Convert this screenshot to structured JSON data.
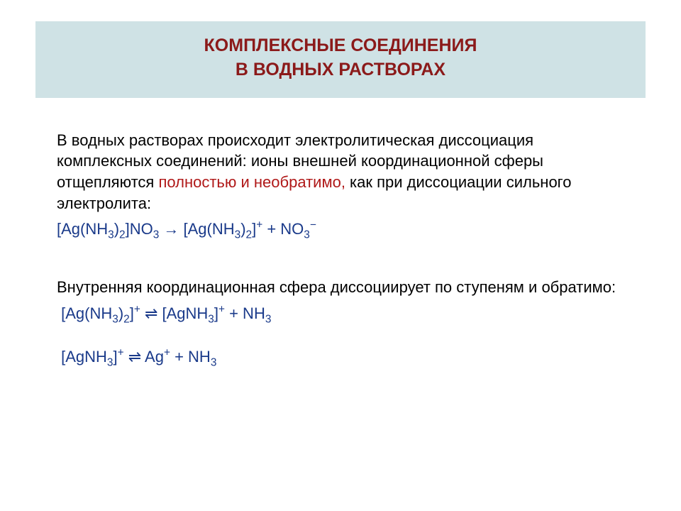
{
  "colors": {
    "title_bg": "#cfe2e5",
    "title_text": "#8b1a1a",
    "body_text": "#000000",
    "highlight_text": "#b01818",
    "formula_text": "#1a3a8a"
  },
  "typography": {
    "title_fontsize": 25,
    "body_fontsize": 22,
    "formula_fontsize": 22
  },
  "title": {
    "line1": "КОМПЛЕКСНЫЕ СОЕДИНЕНИЯ",
    "line2": "В ВОДНЫХ РАСТВОРАХ"
  },
  "para1": {
    "t1": "В водных растворах происходит электролитическая диссоциация комплексных соединений: ионы внешней координационной сферы отщепляются ",
    "hl": "полностью и необратимо,",
    "t2": " как при диссоциации сильного электролита:"
  },
  "formula1_html": "[Ag(NH<span class='sub'>3</span>)<span class='sub'>2</span>]NO<span class='sub'>3</span> &#8594; [Ag(NH<span class='sub'>3</span>)<span class='sub'>2</span>]<span class='sup'>+</span> + NO<span class='sub'>3</span><span class='sup'>&#8722;</span>",
  "para2": "Внутренняя координационная сфера диссоциирует по ступеням и обратимо:",
  "formula2_html": "&nbsp;[Ag(NH<span class='sub'>3</span>)<span class='sub'>2</span>]<span class='sup'>+</span> &#8652; [AgNH<span class='sub'>3</span>]<span class='sup'>+</span> + NH<span class='sub'>3</span>",
  "formula3_html": "&nbsp;[AgNH<span class='sub'>3</span>]<span class='sup'>+</span> &#8652; Ag<span class='sup'>+</span> + NH<span class='sub'>3</span>"
}
